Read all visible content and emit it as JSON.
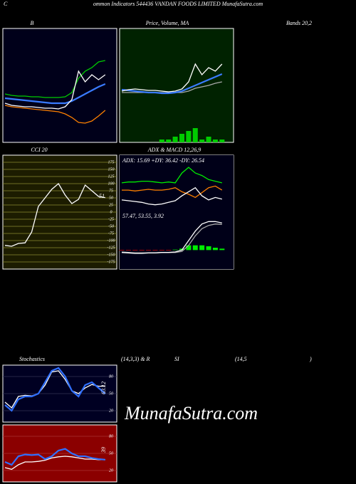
{
  "header": {
    "lead": "C",
    "text": "ommon Indicators 544436 VANDAN FOODS LIMITED MunafaSutra.com"
  },
  "watermark": "MunafaSutra.com",
  "chart_data": [
    {
      "type": "line",
      "title_parts": [
        "B",
        "Bands 20,2"
      ],
      "ylim": [
        0,
        160
      ],
      "series": [
        {
          "color": "#00cc00",
          "values": [
            68,
            66,
            65,
            65,
            64,
            64,
            63,
            63,
            63,
            64,
            70,
            90,
            100,
            105,
            113,
            115
          ]
        },
        {
          "color": "#ff8000",
          "values": [
            52,
            50,
            49,
            48,
            47,
            46,
            45,
            44,
            43,
            40,
            35,
            28,
            27,
            30,
            37,
            45
          ]
        },
        {
          "color": "#3a7bff",
          "values": [
            62,
            61,
            60,
            59,
            58,
            57,
            56,
            55,
            55,
            55,
            58,
            63,
            68,
            73,
            78,
            82
          ]
        },
        {
          "color": "#ffffff",
          "values": [
            55,
            52,
            51,
            50,
            50,
            49,
            48,
            48,
            47,
            50,
            60,
            100,
            85,
            95,
            88,
            95
          ]
        }
      ]
    },
    {
      "type": "line",
      "title_parts": [
        "Price,  Volume, MA"
      ],
      "ylim": [
        0,
        160
      ],
      "y2lim": [
        0,
        40
      ],
      "series": [
        {
          "type": "bar",
          "axis": "y2",
          "color": "#00cc00",
          "values": [
            0,
            0,
            0,
            0,
            0,
            0,
            1,
            1,
            2,
            3,
            4,
            5,
            1,
            2,
            1,
            1
          ]
        },
        {
          "color": "#aaaaaa",
          "values": [
            70,
            70,
            70,
            70,
            70,
            70,
            70,
            70,
            70,
            70,
            72,
            76,
            78,
            80,
            83,
            85
          ]
        },
        {
          "color": "#3a7bff",
          "values": [
            74,
            73,
            72,
            71,
            70,
            70,
            69,
            69,
            70,
            72,
            76,
            80,
            84,
            88,
            92,
            96
          ]
        },
        {
          "color": "#ffffff",
          "values": [
            72,
            74,
            75,
            74,
            73,
            73,
            72,
            71,
            72,
            75,
            85,
            110,
            95,
            105,
            100,
            110
          ]
        }
      ]
    },
    {
      "type": "line",
      "title_parts": [
        "CCI 20"
      ],
      "ylim": [
        -200,
        200
      ],
      "yticks": [
        175,
        150,
        125,
        100,
        75,
        50,
        25,
        0,
        -25,
        -50,
        -75,
        -100,
        -125,
        -150,
        -175
      ],
      "grid": true,
      "annotations": [
        "51"
      ],
      "series": [
        {
          "color": "#ffffff",
          "values": [
            -117,
            -120,
            -110,
            -108,
            -70,
            20,
            50,
            80,
            100,
            60,
            30,
            45,
            95,
            75,
            55,
            51
          ]
        }
      ]
    },
    {
      "type": "line",
      "title_parts": [
        "ADX  & MACD 12,26,9"
      ],
      "ylim": [
        0,
        70
      ],
      "annotations": [
        "ADX: 15.69  +DY: 36.42  -DY: 26.54"
      ],
      "series": [
        {
          "color": "#00ee00",
          "values": [
            36,
            37,
            37,
            38,
            38,
            37,
            36,
            37,
            36,
            48,
            55,
            48,
            45,
            40,
            38,
            36
          ]
        },
        {
          "color": "#ff8000",
          "values": [
            27,
            27,
            26,
            27,
            28,
            27,
            27,
            28,
            30,
            25,
            22,
            18,
            24,
            30,
            32,
            27
          ]
        },
        {
          "color": "#ffffff",
          "values": [
            15,
            14,
            13,
            12,
            10,
            9,
            10,
            12,
            14,
            20,
            25,
            30,
            20,
            15,
            18,
            16
          ]
        }
      ]
    },
    {
      "type": "line",
      "ylim": [
        -40,
        80
      ],
      "annotations": [
        "57.47,  53.55,  3.92"
      ],
      "series": [
        {
          "type": "bar",
          "color": "#00ee00",
          "negative_color": "#ee0000",
          "values": [
            -1,
            -1,
            -1,
            -1,
            -1,
            -1,
            -1,
            -1,
            1,
            3,
            10,
            10,
            10,
            8,
            5,
            3
          ]
        },
        {
          "color": "#aaaaaa",
          "values": [
            -4,
            -5,
            -6,
            -6,
            -6,
            -6,
            -5,
            -5,
            -5,
            -3,
            10,
            30,
            45,
            52,
            55,
            54
          ]
        },
        {
          "color": "#ffffff",
          "values": [
            -5,
            -6,
            -7,
            -7,
            -6,
            -6,
            -5,
            -5,
            -4,
            0,
            20,
            40,
            55,
            60,
            60,
            57
          ]
        }
      ]
    },
    {
      "type": "line",
      "title_parts": [
        "Stochastics",
        "(14,3,3) & R",
        "SI",
        "(14,5",
        ")"
      ],
      "ylim": [
        0,
        100
      ],
      "yticks": [
        80,
        50,
        20
      ],
      "annotations": [
        "63.12"
      ],
      "series": [
        {
          "color": "#ffffff",
          "values": [
            35,
            25,
            45,
            47,
            46,
            50,
            65,
            88,
            90,
            75,
            55,
            50,
            60,
            66,
            63,
            63
          ]
        },
        {
          "color": "#2f6fff",
          "values": [
            30,
            20,
            40,
            45,
            45,
            50,
            70,
            90,
            95,
            80,
            55,
            45,
            65,
            70,
            60,
            50
          ]
        }
      ]
    },
    {
      "type": "line",
      "ylim": [
        0,
        100
      ],
      "yticks": [
        80,
        50,
        20
      ],
      "annotations": [
        "39"
      ],
      "series": [
        {
          "color": "#ffffff",
          "values": [
            25,
            22,
            30,
            35,
            35,
            36,
            38,
            42,
            44,
            45,
            44,
            42,
            40,
            40,
            39,
            39
          ]
        },
        {
          "color": "#2f6fff",
          "values": [
            35,
            30,
            45,
            48,
            47,
            48,
            40,
            45,
            55,
            58,
            50,
            45,
            45,
            42,
            40,
            39
          ]
        }
      ]
    }
  ]
}
